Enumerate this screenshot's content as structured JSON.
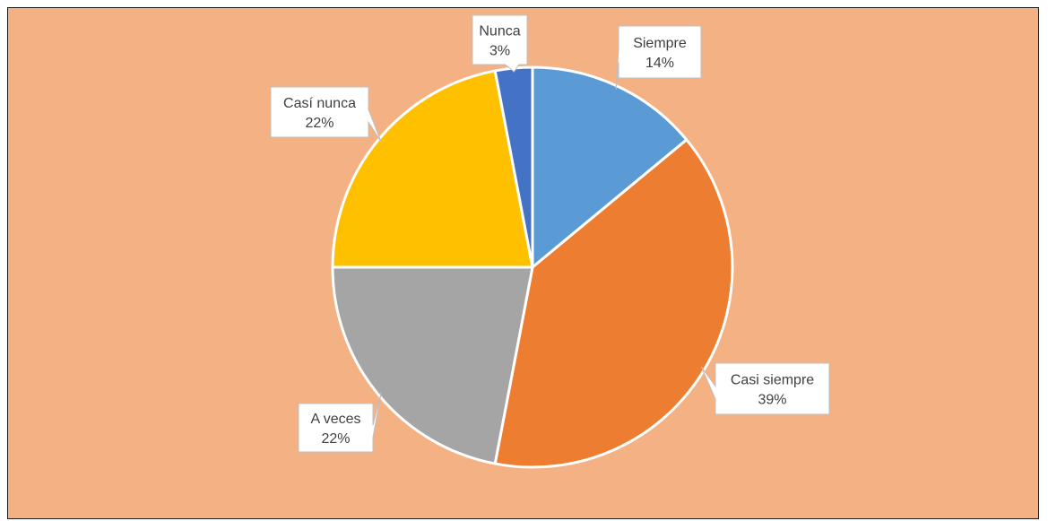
{
  "chart_data": {
    "type": "pie",
    "title": "",
    "slices": [
      {
        "label": "Siempre",
        "value": 14,
        "display": "14%",
        "color": "#5b9bd5"
      },
      {
        "label": "Casi siempre",
        "value": 39,
        "display": "39%",
        "color": "#ed7d31"
      },
      {
        "label": "A veces",
        "value": 22,
        "display": "22%",
        "color": "#a5a5a5"
      },
      {
        "label": "Casí nunca",
        "value": 22,
        "display": "22%",
        "color": "#ffc000"
      },
      {
        "label": "Nunca",
        "value": 3,
        "display": "3%",
        "color": "#4472c4"
      }
    ],
    "start_angle_deg": 0,
    "direction": "clockwise",
    "legend": "none",
    "data_labels": "callouts"
  },
  "background_color": "#f4b183",
  "slice_border_color": "#ffffff"
}
